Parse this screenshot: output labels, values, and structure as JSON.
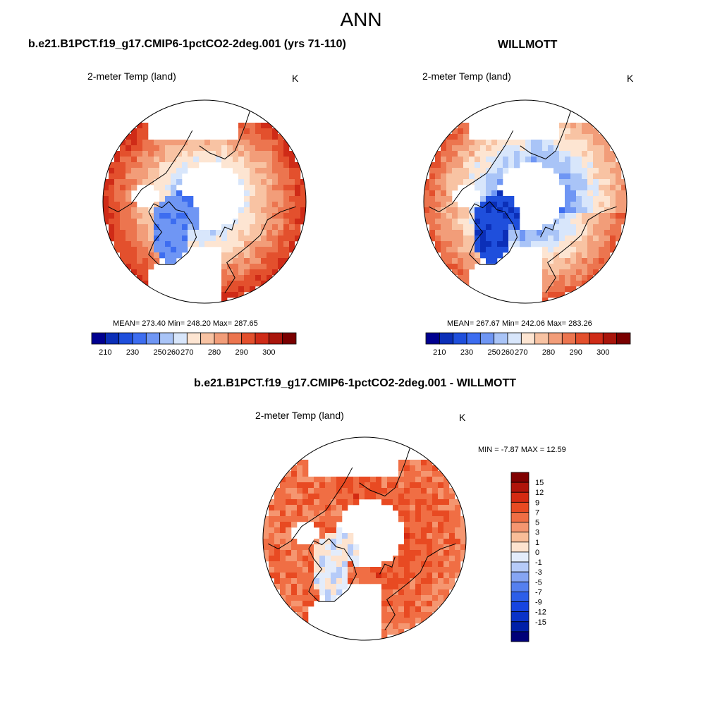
{
  "figure": {
    "title": "ANN",
    "colors": {
      "abs_palette": [
        "#000090",
        "#0b2fb8",
        "#1f4fdc",
        "#3d6df0",
        "#6f96f4",
        "#a9c4f7",
        "#d8e6fb",
        "#fde5d2",
        "#f8c3a3",
        "#f29d79",
        "#ec754f",
        "#e3502d",
        "#cf2b17",
        "#a9150b",
        "#7a0000"
      ],
      "diff_palette": [
        "#000078",
        "#0020a8",
        "#0a33c8",
        "#1745e0",
        "#2c5ee8",
        "#5580ef",
        "#86a5f3",
        "#b6cbf8",
        "#e3ecfb",
        "#fde3cf",
        "#f9bd98",
        "#f59670",
        "#f06e44",
        "#e84a22",
        "#d42a12",
        "#b0140a",
        "#800000"
      ],
      "coast": "#000000",
      "land_blank": "#ffffff"
    }
  },
  "panels": {
    "model": {
      "title": "b.e21.B1PCT.f19_g17.CMIP6-1pctCO2-2deg.001 (yrs 71-110)",
      "var_label": "2-meter Temp (land)",
      "units": "K",
      "stats": "MEAN= 273.40  Min= 248.20  Max= 287.65"
    },
    "obs": {
      "title": "WILLMOTT",
      "var_label": "2-meter Temp (land)",
      "units": "K",
      "stats": "MEAN= 267.67  Min= 242.06  Max= 283.26"
    },
    "diff": {
      "title": "b.e21.B1PCT.f19_g17.CMIP6-1pctCO2-2deg.001 - WILLMOTT",
      "var_label": "2-meter Temp (land)",
      "units": "K",
      "stats": "MIN =  -7.87 MAX =  12.59"
    }
  },
  "chart_data": [
    {
      "type": "map",
      "projection": "north-polar-stereographic",
      "title": "b.e21.B1PCT.f19_g17.CMIP6-1pctCO2-2deg.001 (yrs 71-110)",
      "variable": "2-meter Temp (land)",
      "units": "K",
      "mean": 273.4,
      "min": 248.2,
      "max": 287.65,
      "colorbar_ticks": [
        "210",
        "230",
        "250",
        "260",
        "270",
        "280",
        "290",
        "300"
      ]
    },
    {
      "type": "map",
      "projection": "north-polar-stereographic",
      "title": "WILLMOTT",
      "variable": "2-meter Temp (land)",
      "units": "K",
      "mean": 267.67,
      "min": 242.06,
      "max": 283.26,
      "colorbar_ticks": [
        "210",
        "230",
        "250",
        "260",
        "270",
        "280",
        "290",
        "300"
      ]
    },
    {
      "type": "map",
      "projection": "north-polar-stereographic",
      "title": "b.e21.B1PCT.f19_g17.CMIP6-1pctCO2-2deg.001 - WILLMOTT",
      "variable": "2-meter Temp (land)",
      "units": "K",
      "min": -7.87,
      "max": 12.59,
      "colorbar_ticks": [
        "15",
        "12",
        "9",
        "7",
        "5",
        "3",
        "1",
        "0",
        "-1",
        "-3",
        "-5",
        "-7",
        "-9",
        "-12",
        "-15"
      ]
    }
  ]
}
